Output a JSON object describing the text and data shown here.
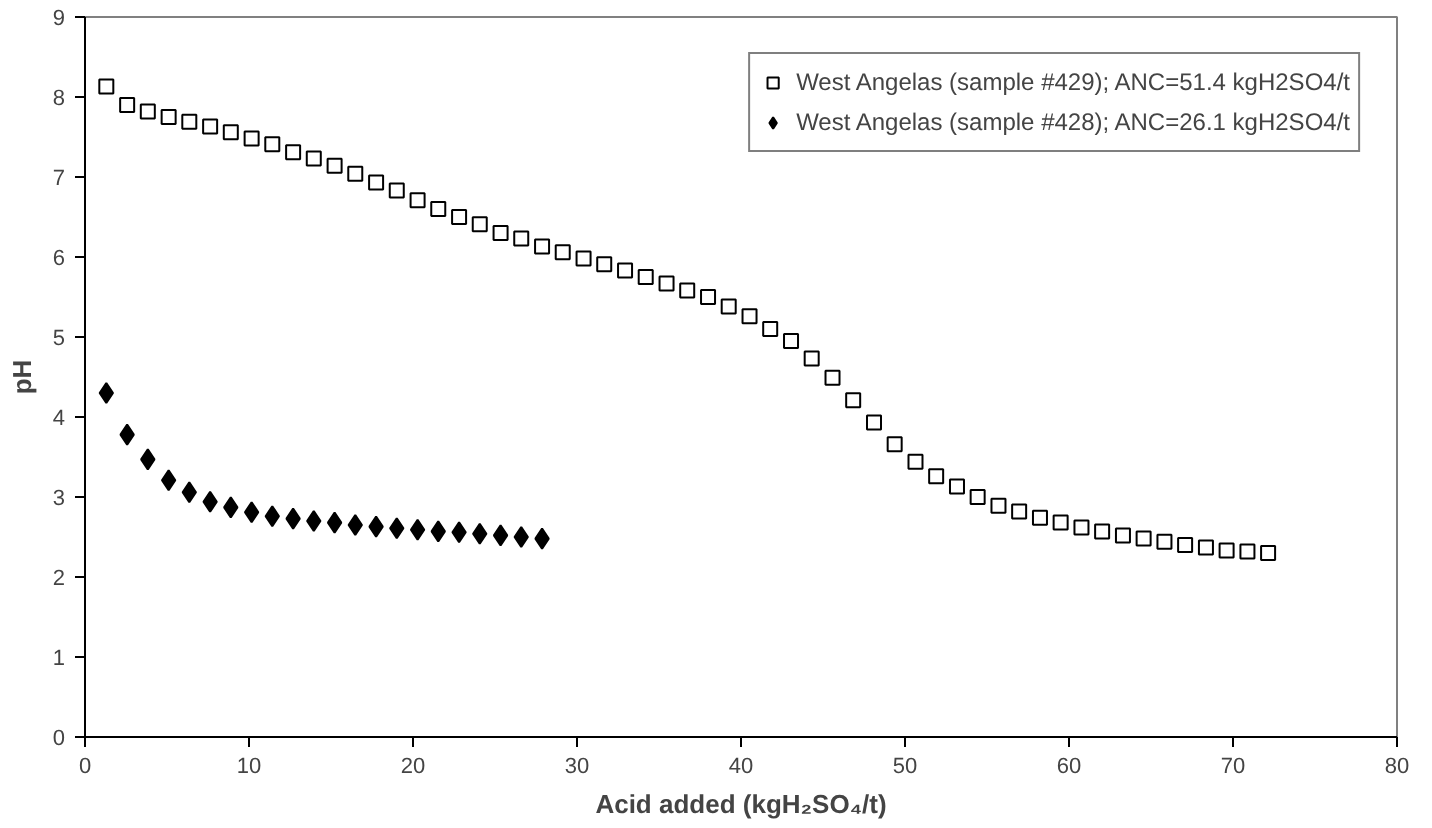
{
  "chart_data": {
    "type": "scatter",
    "xlabel": "Acid added (kgH₂SO₄/t)",
    "ylabel": "pH",
    "xlim": [
      0,
      80
    ],
    "xticks": [
      0,
      10,
      20,
      30,
      40,
      50,
      60,
      70,
      80
    ],
    "ylim": [
      0,
      9
    ],
    "yticks": [
      0,
      1,
      2,
      3,
      4,
      5,
      6,
      7,
      8,
      9
    ],
    "grid": false,
    "legend": "top right",
    "series": [
      {
        "name": "West Angelas (sample #429); ANC=51.4 kgH2SO4/t",
        "color": "#000000",
        "marker": "square",
        "x": [
          1.3,
          2.57,
          3.83,
          5.1,
          6.36,
          7.63,
          8.89,
          10.16,
          11.42,
          12.69,
          13.95,
          15.22,
          16.48,
          17.75,
          19.01,
          20.28,
          21.54,
          22.81,
          24.07,
          25.34,
          26.6,
          27.87,
          29.13,
          30.4,
          31.66,
          32.93,
          34.19,
          35.46,
          36.72,
          37.99,
          39.25,
          40.52,
          41.78,
          43.05,
          44.31,
          45.58,
          46.84,
          48.11,
          49.37,
          50.64,
          51.9,
          53.17,
          54.43,
          55.7,
          56.96,
          58.23,
          59.49,
          60.76,
          62.02,
          63.29,
          64.55,
          65.82,
          67.08,
          68.35,
          69.61,
          70.88,
          72.14
        ],
        "values": [
          8.13,
          7.9,
          7.82,
          7.75,
          7.69,
          7.63,
          7.56,
          7.48,
          7.41,
          7.31,
          7.23,
          7.14,
          7.04,
          6.93,
          6.83,
          6.71,
          6.6,
          6.5,
          6.41,
          6.3,
          6.23,
          6.13,
          6.06,
          5.98,
          5.91,
          5.83,
          5.75,
          5.67,
          5.58,
          5.5,
          5.38,
          5.26,
          5.1,
          4.95,
          4.73,
          4.49,
          4.21,
          3.93,
          3.66,
          3.44,
          3.26,
          3.13,
          3.0,
          2.89,
          2.82,
          2.74,
          2.68,
          2.62,
          2.57,
          2.52,
          2.48,
          2.44,
          2.4,
          2.37,
          2.33,
          2.32,
          2.3
        ]
      },
      {
        "name": "West Angelas (sample #428); ANC=26.1 kgH2SO4/t",
        "color": "#000000",
        "marker": "diamond",
        "x": [
          1.3,
          2.57,
          3.83,
          5.1,
          6.36,
          7.63,
          8.89,
          10.16,
          11.42,
          12.69,
          13.95,
          15.22,
          16.48,
          17.75,
          19.01,
          20.28,
          21.54,
          22.81,
          24.07,
          25.34,
          26.6,
          27.87
        ],
        "values": [
          4.3,
          3.78,
          3.47,
          3.21,
          3.06,
          2.94,
          2.87,
          2.81,
          2.76,
          2.73,
          2.7,
          2.68,
          2.65,
          2.63,
          2.61,
          2.59,
          2.57,
          2.56,
          2.54,
          2.52,
          2.5,
          2.48
        ]
      }
    ]
  }
}
